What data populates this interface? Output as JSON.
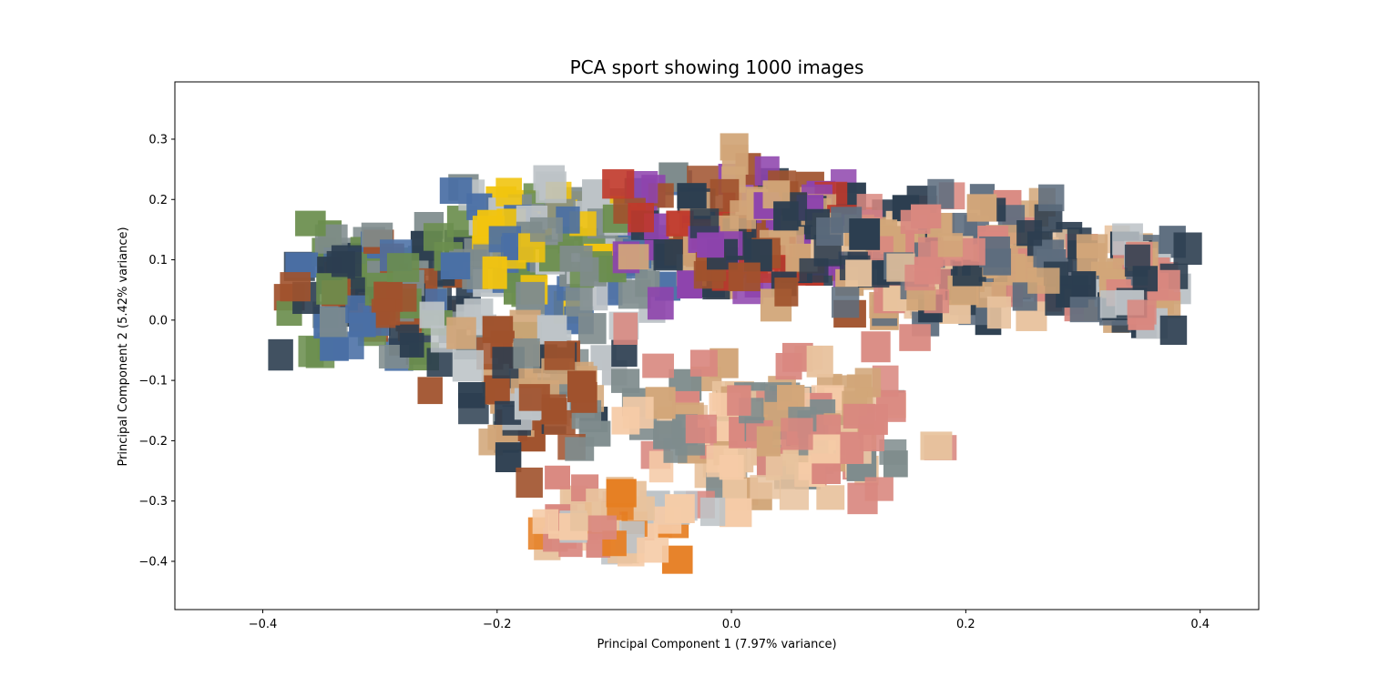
{
  "chart_data": {
    "type": "scatter",
    "title": "PCA sport showing 1000 images",
    "xlabel": "Principal Component 1 (7.97% variance)",
    "ylabel": "Principal Component 2 (5.42% variance)",
    "xlim": [
      -0.475,
      0.45
    ],
    "ylim": [
      -0.48,
      0.395
    ],
    "xticks": [
      -0.4,
      -0.2,
      0.0,
      0.2,
      0.4
    ],
    "xtick_labels": [
      "−0.4",
      "−0.2",
      "0.0",
      "0.2",
      "0.4"
    ],
    "yticks": [
      0.3,
      0.2,
      0.1,
      0.0,
      -0.1,
      -0.2,
      -0.3,
      -0.4
    ],
    "ytick_labels": [
      "0.3",
      "0.2",
      "0.1",
      "0.0",
      "−0.1",
      "−0.2",
      "−0.3",
      "−0.4"
    ],
    "grid": false,
    "legend": "none",
    "marker": "image thumbnail",
    "point_count": 1000,
    "palette": [
      "#6b8e4e",
      "#a0522d",
      "#d2a679",
      "#4a6fa5",
      "#c0392b",
      "#e8c39e",
      "#2c3e50",
      "#f1c40f",
      "#8e44ad",
      "#7f8c8d",
      "#e67e22",
      "#16a085",
      "#bdc3c7",
      "#d98880",
      "#5d6d7e",
      "#f5cba7"
    ]
  }
}
